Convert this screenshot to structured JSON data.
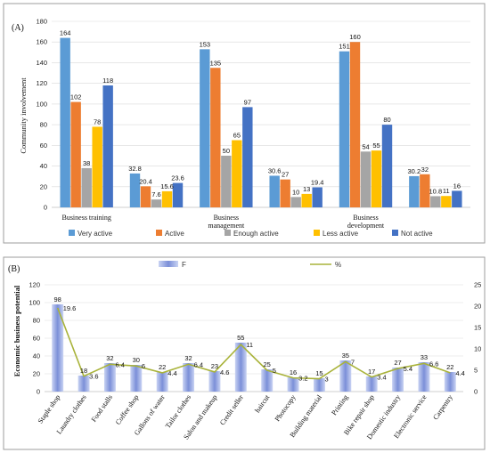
{
  "chart_data": [
    {
      "panel_label": "(A)",
      "type": "bar",
      "ylabel": "Community involvement",
      "ylim": [
        0,
        180
      ],
      "yticks": [
        "0",
        "20",
        "40",
        "60",
        "80",
        "100",
        "120",
        "140",
        "160",
        "180"
      ],
      "categories": [
        [
          "Business training"
        ],
        [
          "",
          "",
          ""
        ],
        [
          "Business",
          "management"
        ],
        [
          "",
          "",
          ""
        ],
        [
          "Business",
          "development"
        ],
        [
          "",
          "",
          ""
        ]
      ],
      "series": [
        {
          "name": "Very active",
          "color": "#5b9bd5",
          "values": [
            164,
            32.8,
            153,
            30.6,
            151,
            30.2
          ],
          "labels": [
            "164",
            "32.8",
            "153",
            "30.6",
            "151",
            "30.2"
          ]
        },
        {
          "name": "Active",
          "color": "#ed7d31",
          "values": [
            102,
            20.4,
            135,
            27,
            160,
            32
          ],
          "labels": [
            "102",
            "20.4",
            "135",
            "27",
            "160",
            "32"
          ]
        },
        {
          "name": "Enough active",
          "color": "#a5a5a5",
          "values": [
            38,
            7.6,
            50,
            10,
            54,
            10.8
          ],
          "labels": [
            "38",
            "7.6",
            "50",
            "10",
            "54",
            "10.8"
          ]
        },
        {
          "name": "Less active",
          "color": "#ffc000",
          "values": [
            78,
            15.6,
            65,
            13,
            55,
            11
          ],
          "labels": [
            "78",
            "15.6",
            "65",
            "13",
            "55",
            "11"
          ]
        },
        {
          "name": "Not active",
          "color": "#4472c4",
          "values": [
            118,
            23.6,
            97,
            19.4,
            80,
            16
          ],
          "labels": [
            "118",
            "23.6",
            "97",
            "19.4",
            "80",
            "16"
          ]
        }
      ],
      "grid": true,
      "legend": "bottom"
    },
    {
      "panel_label": "(B)",
      "type": "bar",
      "ylabel": "Economic business potential",
      "ylim": [
        0,
        120
      ],
      "y2lim": [
        0,
        25
      ],
      "yticks": [
        "0",
        "20",
        "40",
        "60",
        "80",
        "100",
        "120"
      ],
      "y2ticks": [
        "0",
        "5",
        "10",
        "15",
        "20",
        "25"
      ],
      "categories": [
        "Staple shop",
        "Laundry clothes",
        "Food stalls",
        "Coffee shop",
        "Gallons of water",
        "Tailor clothes",
        "Salon and makeup",
        "Credit seller",
        "haircut",
        "Photocopy",
        "Building material",
        "Printing",
        "Bike repair shop",
        "Domestic industry",
        "Electronic service",
        "Carpentry"
      ],
      "series": [
        {
          "name": "F",
          "kind": "bar",
          "axis": "left",
          "color": "#7b8fd8",
          "values": [
            98,
            18,
            32,
            30,
            22,
            32,
            23,
            55,
            25,
            16,
            15,
            35,
            17,
            27,
            33,
            22
          ],
          "labels": [
            "98",
            "18",
            "32",
            "30",
            "22",
            "32",
            "23",
            "55",
            "25",
            "16",
            "15",
            "35",
            "17",
            "27",
            "33",
            "22"
          ]
        },
        {
          "name": "%",
          "kind": "line",
          "axis": "right",
          "color": "#a9b33a",
          "values": [
            19.6,
            3.6,
            6.4,
            6,
            4.4,
            6.4,
            4.6,
            11,
            5,
            3.2,
            3,
            7,
            3.4,
            5.4,
            6.6,
            4.4
          ],
          "labels": [
            "19.6",
            "3.6",
            "6.4",
            "6",
            "4.4",
            "6.4",
            "4.6",
            "11",
            "5",
            "3.2",
            "3",
            "7",
            "3.4",
            "5.4",
            "6.6",
            "4.4"
          ]
        }
      ],
      "grid": true,
      "legend": "top"
    }
  ]
}
